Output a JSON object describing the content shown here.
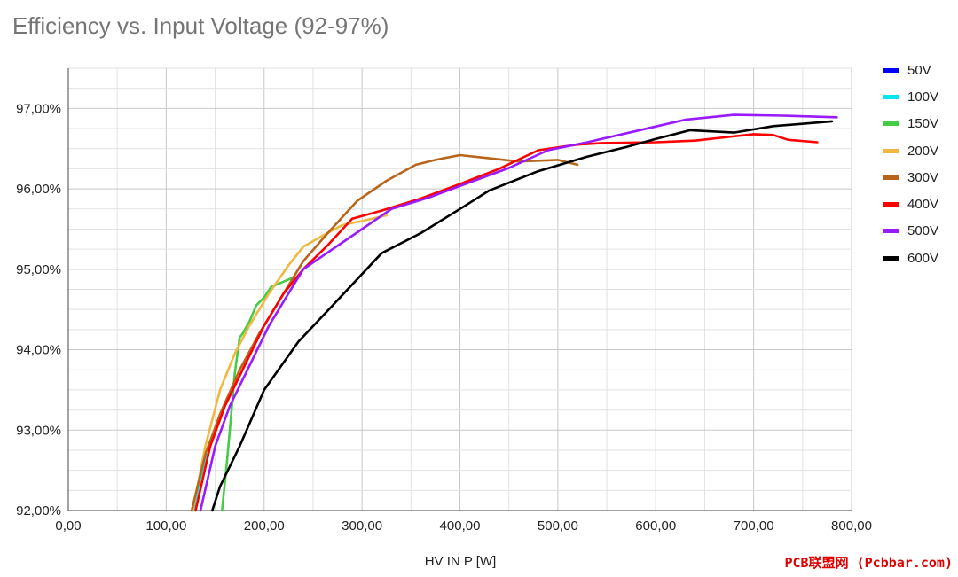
{
  "chart_data": {
    "type": "line",
    "title": "Efficiency vs. Input Voltage (92-97%)",
    "xlabel": "HV IN P [W]",
    "ylabel": "",
    "xlim": [
      0,
      800
    ],
    "ylim": [
      92,
      97.5
    ],
    "x_ticks": [
      "0,00",
      "100,00",
      "200,00",
      "300,00",
      "400,00",
      "500,00",
      "600,00",
      "700,00",
      "800,00"
    ],
    "x_tick_values": [
      0,
      100,
      200,
      300,
      400,
      500,
      600,
      700,
      800
    ],
    "y_ticks": [
      "92,00%",
      "93,00%",
      "94,00%",
      "95,00%",
      "96,00%",
      "97,00%"
    ],
    "y_tick_values": [
      92,
      93,
      94,
      95,
      96,
      97
    ],
    "legend_position": "right",
    "series": [
      {
        "name": "50V",
        "color": "#0000ff",
        "points": []
      },
      {
        "name": "100V",
        "color": "#00e5ee",
        "points": [
          [
            128,
            92.0
          ],
          [
            133,
            92.3
          ],
          [
            137,
            92.5
          ],
          [
            142,
            92.7
          ]
        ]
      },
      {
        "name": "150V",
        "color": "#44cc44",
        "points": [
          [
            157,
            92.0
          ],
          [
            162,
            92.6
          ],
          [
            165,
            93.0
          ],
          [
            170,
            93.7
          ],
          [
            175,
            94.15
          ],
          [
            178,
            94.2
          ],
          [
            185,
            94.35
          ],
          [
            192,
            94.55
          ],
          [
            200,
            94.65
          ],
          [
            207,
            94.78
          ],
          [
            215,
            94.82
          ],
          [
            230,
            94.9
          ]
        ]
      },
      {
        "name": "200V",
        "color": "#f0b840",
        "points": [
          [
            127,
            92.0
          ],
          [
            140,
            92.8
          ],
          [
            155,
            93.5
          ],
          [
            170,
            93.95
          ],
          [
            185,
            94.3
          ],
          [
            205,
            94.7
          ],
          [
            225,
            95.05
          ],
          [
            240,
            95.28
          ],
          [
            260,
            95.42
          ],
          [
            280,
            95.55
          ],
          [
            300,
            95.6
          ],
          [
            325,
            95.67
          ]
        ]
      },
      {
        "name": "300V",
        "color": "#b8651b",
        "points": [
          [
            126,
            92.0
          ],
          [
            140,
            92.7
          ],
          [
            155,
            93.2
          ],
          [
            175,
            93.75
          ],
          [
            195,
            94.2
          ],
          [
            215,
            94.6
          ],
          [
            240,
            95.1
          ],
          [
            265,
            95.45
          ],
          [
            295,
            95.85
          ],
          [
            325,
            96.1
          ],
          [
            355,
            96.3
          ],
          [
            375,
            96.36
          ],
          [
            400,
            96.42
          ],
          [
            430,
            96.38
          ],
          [
            460,
            96.34
          ],
          [
            500,
            96.36
          ],
          [
            520,
            96.3
          ]
        ]
      },
      {
        "name": "400V",
        "color": "#ff0000",
        "points": [
          [
            130,
            92.0
          ],
          [
            145,
            92.8
          ],
          [
            160,
            93.3
          ],
          [
            180,
            93.8
          ],
          [
            200,
            94.3
          ],
          [
            220,
            94.7
          ],
          [
            240,
            95.0
          ],
          [
            265,
            95.3
          ],
          [
            290,
            95.63
          ],
          [
            320,
            95.73
          ],
          [
            360,
            95.88
          ],
          [
            400,
            96.06
          ],
          [
            440,
            96.25
          ],
          [
            480,
            96.48
          ],
          [
            520,
            96.55
          ],
          [
            545,
            96.57
          ],
          [
            600,
            96.58
          ],
          [
            640,
            96.6
          ],
          [
            670,
            96.64
          ],
          [
            700,
            96.68
          ],
          [
            720,
            96.67
          ],
          [
            735,
            96.61
          ],
          [
            765,
            96.58
          ]
        ]
      },
      {
        "name": "500V",
        "color": "#9a1aff",
        "points": [
          [
            135,
            92.0
          ],
          [
            150,
            92.8
          ],
          [
            165,
            93.3
          ],
          [
            185,
            93.8
          ],
          [
            205,
            94.3
          ],
          [
            225,
            94.7
          ],
          [
            240,
            95.0
          ],
          [
            270,
            95.25
          ],
          [
            300,
            95.5
          ],
          [
            330,
            95.75
          ],
          [
            370,
            95.9
          ],
          [
            410,
            96.08
          ],
          [
            450,
            96.26
          ],
          [
            490,
            96.48
          ],
          [
            530,
            96.58
          ],
          [
            580,
            96.72
          ],
          [
            630,
            96.86
          ],
          [
            680,
            96.92
          ],
          [
            730,
            96.91
          ],
          [
            785,
            96.89
          ]
        ]
      },
      {
        "name": "600V",
        "color": "#000000",
        "points": [
          [
            147,
            92.0
          ],
          [
            155,
            92.3
          ],
          [
            175,
            92.8
          ],
          [
            200,
            93.5
          ],
          [
            235,
            94.1
          ],
          [
            270,
            94.55
          ],
          [
            320,
            95.2
          ],
          [
            360,
            95.45
          ],
          [
            400,
            95.75
          ],
          [
            430,
            95.98
          ],
          [
            480,
            96.22
          ],
          [
            530,
            96.4
          ],
          [
            570,
            96.52
          ],
          [
            600,
            96.62
          ],
          [
            635,
            96.73
          ],
          [
            680,
            96.7
          ],
          [
            720,
            96.78
          ],
          [
            770,
            96.83
          ],
          [
            780,
            96.84
          ]
        ]
      }
    ]
  },
  "watermark": "PCB联盟网 (Pcbbar.com)"
}
